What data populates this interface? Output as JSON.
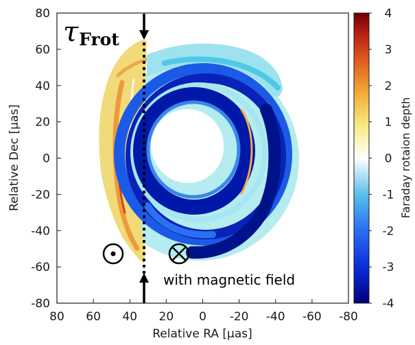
{
  "chart_data": {
    "type": "heatmap",
    "title_symbol": "τ",
    "title_subscript": "Frot",
    "xlabel": "Relative RA [μas]",
    "ylabel": "Relative Dec [μas]",
    "xlim": [
      80,
      -80
    ],
    "ylim": [
      -80,
      80
    ],
    "x_ticks": [
      "80",
      "60",
      "40",
      "20",
      "0",
      "-20",
      "-40",
      "-60",
      "-80"
    ],
    "y_ticks": [
      "80",
      "60",
      "40",
      "20",
      "0",
      "-20",
      "-40",
      "-60",
      "-80"
    ],
    "colorbar": {
      "label": "Faraday rotaion depth",
      "range": [
        -4,
        4
      ],
      "ticks": [
        "4",
        "3",
        "2",
        "1",
        "0",
        "-1",
        "-2",
        "-3",
        "-4"
      ]
    },
    "line_of_sight_x": 32,
    "annotations": {
      "out_of_page_symbol": "⊙",
      "into_page_symbol": "⊗",
      "caption": "with magnetic field"
    }
  },
  "colors": {
    "dark_blue": "#00109a",
    "blue": "#1a55e8",
    "light_blue": "#8fe6f0",
    "white": "#ffffff",
    "yellow": "#f0df7a",
    "orange": "#ef9a2c",
    "red": "#cf3a18",
    "dark_red": "#7a0505"
  }
}
